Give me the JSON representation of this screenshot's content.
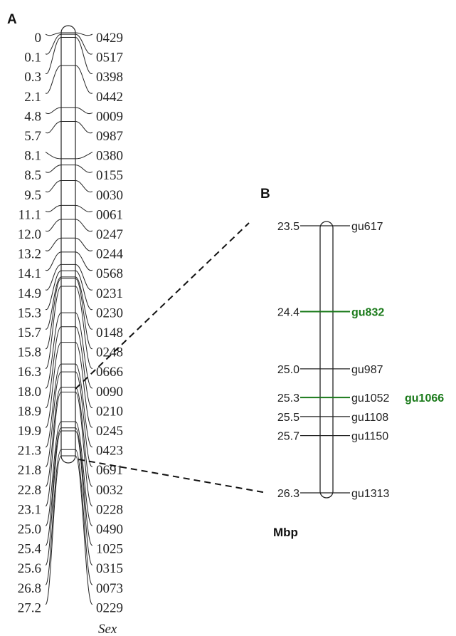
{
  "panel_a": {
    "label": "A",
    "positions": [
      "0",
      "0.1",
      "0.3",
      "2.1",
      "4.8",
      "5.7",
      "8.1",
      "8.5",
      "9.5",
      "11.1",
      "12.0",
      "13.2",
      "14.1",
      "14.9",
      "15.3",
      "15.7",
      "15.8",
      "16.3",
      "18.0",
      "18.9",
      "19.9",
      "21.3",
      "21.8",
      "22.8",
      "23.1",
      "25.0",
      "25.4",
      "25.6",
      "26.8",
      "27.2"
    ],
    "markers": [
      "0429",
      "0517",
      "0398",
      "0442",
      "0009",
      "0987",
      "0380",
      "0155",
      "0030",
      "0061",
      "0247",
      "0244",
      "0568",
      "0231",
      "0230",
      "0148",
      "0248",
      "0666",
      "0090",
      "0210",
      "0245",
      "0423",
      "0691",
      "0032",
      "0228",
      "0490",
      "1025",
      "0315",
      "0073",
      "0229"
    ],
    "trait": "Sex"
  },
  "panel_b": {
    "label": "B",
    "units": "Mbp",
    "loci": [
      {
        "pos": "23.5",
        "marker": "gu617",
        "highlight": false
      },
      {
        "pos": "24.4",
        "marker": "gu832",
        "highlight": true
      },
      {
        "pos": "25.0",
        "marker": "gu987",
        "highlight": false
      },
      {
        "pos": "25.3",
        "marker": "gu1052",
        "extra": "gu1066",
        "highlight": true
      },
      {
        "pos": "25.5",
        "marker": "gu1108",
        "highlight": false
      },
      {
        "pos": "25.7",
        "marker": "gu1150",
        "highlight": false
      },
      {
        "pos": "26.3",
        "marker": "gu1313",
        "highlight": false
      }
    ]
  },
  "colors": {
    "line": "#222222",
    "highlight": "#1a7a1a"
  }
}
